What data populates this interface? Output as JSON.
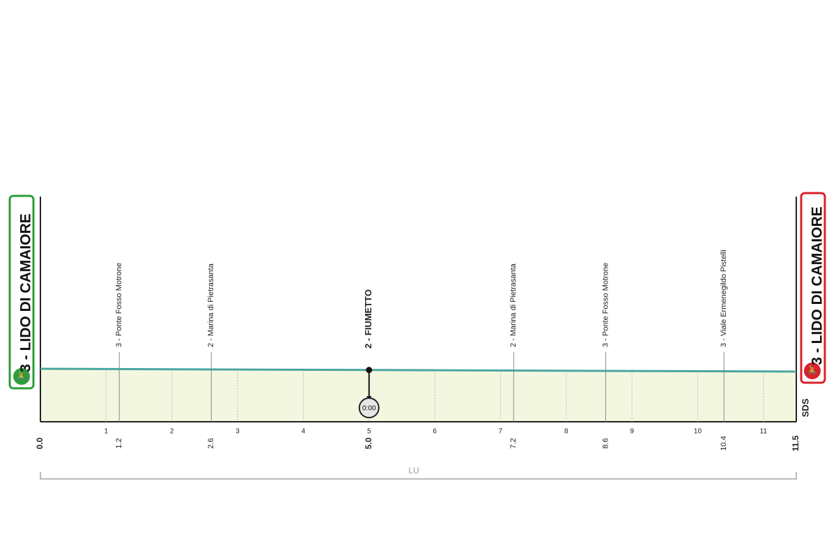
{
  "start": {
    "label": "3 - LIDO DI CAMAIORE",
    "km": "0.0"
  },
  "finish": {
    "label": "3 - LIDO DI CAMAIORE",
    "km": "11.5"
  },
  "waypoints": [
    {
      "label": "3 - Ponte Fosso Motrone",
      "km": "1.2"
    },
    {
      "label": "2 - Marina di Pietrasanta",
      "km": "2.6"
    },
    {
      "label": "2 - FIUMETTO",
      "km": "5.0",
      "time": "0:00"
    },
    {
      "label": "2 - Marina di Pietrasanta",
      "km": "7.2"
    },
    {
      "label": "3 - Ponte Fosso Motrone",
      "km": "8.6"
    },
    {
      "label": "3 - Viale Ermenegildo Pistelli",
      "km": "10.4"
    }
  ],
  "km_ticks": [
    1,
    2,
    3,
    4,
    5,
    6,
    7,
    8,
    9,
    10,
    11
  ],
  "region": "LU",
  "logo": "SDS"
}
